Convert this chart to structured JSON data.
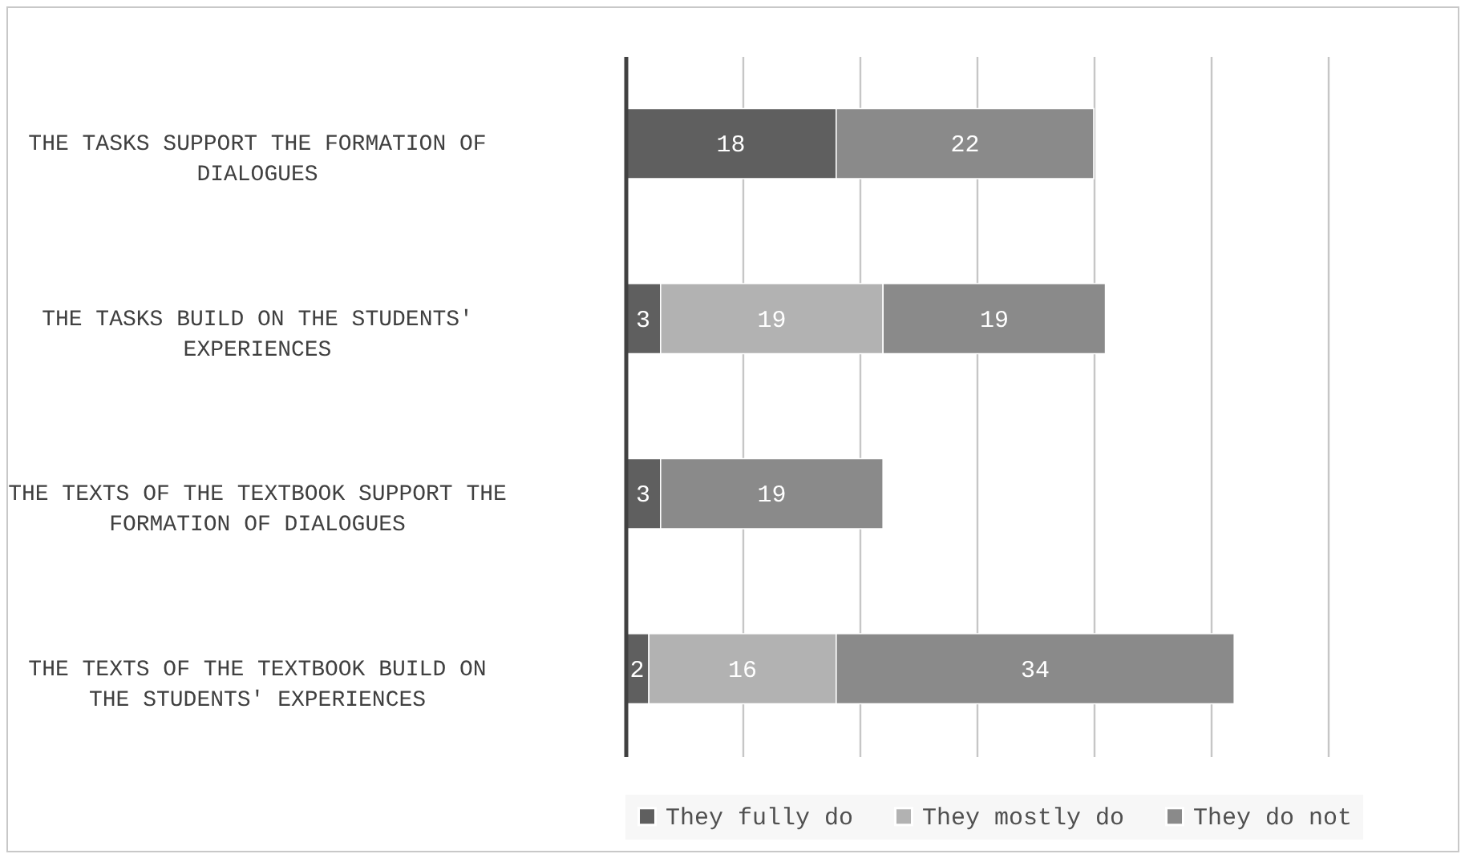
{
  "chart_data": {
    "type": "bar",
    "orientation": "horizontal",
    "stacked": true,
    "categories": [
      "THE TASKS SUPPORT THE FORMATION OF DIALOGUES",
      "THE TASKS BUILD ON THE STUDENTS' EXPERIENCES",
      "THE TEXTS OF THE TEXTBOOK SUPPORT THE FORMATION OF DIALOGUES",
      "THE TEXTS OF THE TEXTBOOK BUILD ON THE STUDENTS' EXPERIENCES"
    ],
    "series": [
      {
        "name": "They fully do",
        "color": "#5f5f5f",
        "values": [
          18,
          3,
          3,
          2
        ]
      },
      {
        "name": "They mostly do",
        "color": "#b2b2b2",
        "values": [
          null,
          19,
          null,
          16
        ]
      },
      {
        "name": "They do not",
        "color": "#8a8a8a",
        "values": [
          22,
          19,
          19,
          34
        ]
      }
    ],
    "xlim": [
      0,
      60
    ],
    "xticks": [
      {
        "value": 0,
        "label": null
      },
      {
        "value": 10,
        "label": null
      },
      {
        "value": 20,
        "label": null
      },
      {
        "value": 30,
        "label": null
      },
      {
        "value": 40,
        "label": null
      },
      {
        "value": 50,
        "label": null
      },
      {
        "value": 60,
        "label": null
      }
    ],
    "tick_labels": "y",
    "grid": "x",
    "data_labels": true,
    "legend": "bottom"
  }
}
